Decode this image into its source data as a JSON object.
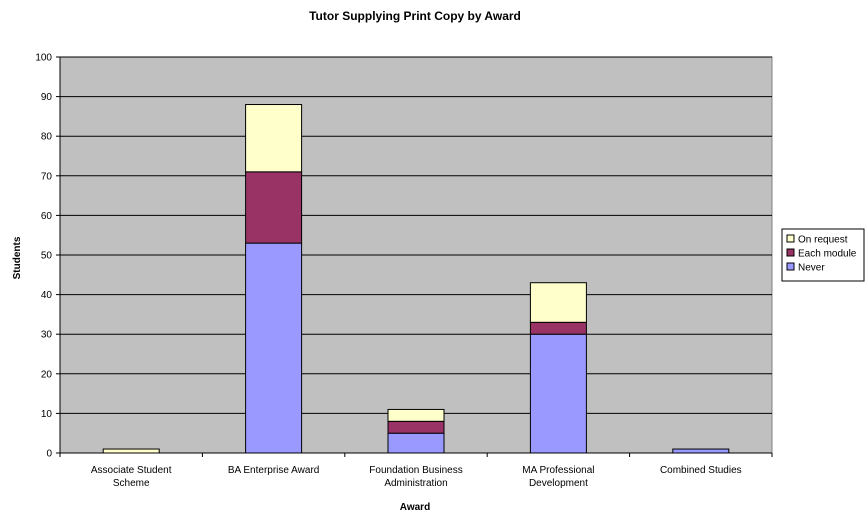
{
  "chart_data": {
    "type": "bar",
    "stacked": true,
    "title": "Tutor Supplying Print Copy by Award",
    "xlabel": "Award",
    "ylabel": "Students",
    "ylim": [
      0,
      100
    ],
    "yticks": [
      0,
      10,
      20,
      30,
      40,
      50,
      60,
      70,
      80,
      90,
      100
    ],
    "grid": true,
    "plot_background": "#c0c0c0",
    "legend_position": "right",
    "categories": [
      [
        "Associate Student",
        "Scheme"
      ],
      [
        "BA Enterprise Award"
      ],
      [
        "Foundation Business",
        "Administration"
      ],
      [
        "MA Professional",
        "Development"
      ],
      [
        "Combined Studies"
      ]
    ],
    "series": [
      {
        "name": "Never",
        "color": "#9999ff",
        "values": [
          0,
          53,
          5,
          30,
          1
        ]
      },
      {
        "name": "Each module",
        "color": "#993366",
        "values": [
          0,
          18,
          3,
          3,
          0
        ]
      },
      {
        "name": "On request",
        "color": "#ffffcc",
        "values": [
          1,
          17,
          3,
          10,
          0
        ]
      }
    ]
  }
}
